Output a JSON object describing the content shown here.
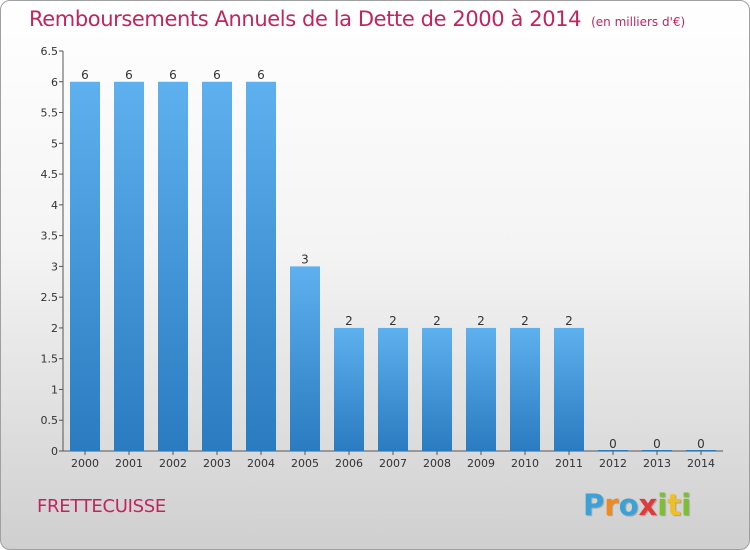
{
  "header": {
    "title": "Remboursements Annuels de la Dette de 2000 à 2014",
    "subtitle": "(en milliers d'€)"
  },
  "footer": {
    "commune": "FRETTECUISSE",
    "logo": {
      "letters": [
        "P",
        "r",
        "o",
        "x",
        "i",
        "t",
        "i"
      ],
      "colors": [
        "#3aa2d6",
        "#f08a1c",
        "#3aa2d6",
        "#e03a3a",
        "#7cbf2f",
        "#f0c020",
        "#7cbf2f"
      ]
    }
  },
  "chart_data": {
    "type": "bar",
    "categories": [
      "2000",
      "2001",
      "2002",
      "2003",
      "2004",
      "2005",
      "2006",
      "2007",
      "2008",
      "2009",
      "2010",
      "2011",
      "2012",
      "2013",
      "2014"
    ],
    "values": [
      6,
      6,
      6,
      6,
      6,
      3,
      2,
      2,
      2,
      2,
      2,
      2,
      0,
      0,
      0
    ],
    "ylim": [
      0,
      6.5
    ],
    "yticks": [
      "0",
      "0.5",
      "1",
      "1.5",
      "2",
      "2.5",
      "3",
      "3.5",
      "4",
      "4.5",
      "5",
      "5.5",
      "6",
      "6.5"
    ],
    "ytick_values": [
      0,
      0.5,
      1,
      1.5,
      2,
      2.5,
      3,
      3.5,
      4,
      4.5,
      5,
      5.5,
      6,
      6.5
    ],
    "bar_color": "#5aaaea",
    "bar_color_dark": "#2b7dc2",
    "title_color": "#c4245e",
    "grid": false,
    "legend": "none"
  }
}
